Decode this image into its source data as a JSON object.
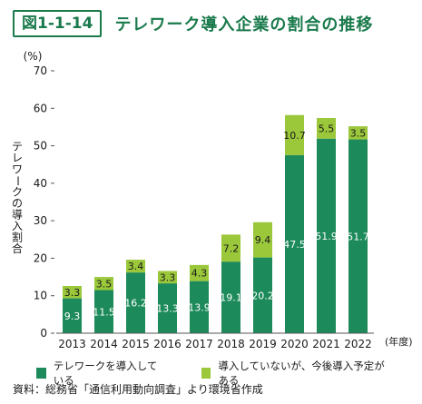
{
  "header": {
    "figure_label": "図1-1-14",
    "title": "テレワーク導入企業の割合の推移"
  },
  "colors": {
    "accent": "#1a7a4c",
    "series_dark": "#1c8a5a",
    "series_light": "#9bc73b"
  },
  "chart_data": {
    "type": "bar",
    "stacked": true,
    "unit_label": "(%)",
    "ylabel": "テレワークの導入割合",
    "x_unit_label": "(年度)",
    "categories": [
      "2013",
      "2014",
      "2015",
      "2016",
      "2017",
      "2018",
      "2019",
      "2020",
      "2021",
      "2022"
    ],
    "ylim": [
      0,
      70
    ],
    "yticks": [
      0,
      10,
      20,
      30,
      40,
      50,
      60,
      70
    ],
    "series": [
      {
        "name": "テレワークを導入している",
        "values": [
          9.3,
          11.5,
          16.2,
          13.3,
          13.9,
          19.1,
          20.2,
          47.5,
          51.9,
          51.7
        ]
      },
      {
        "name": "導入していないが、今後導入予定がある",
        "values": [
          3.3,
          3.5,
          3.4,
          3.3,
          4.3,
          7.2,
          9.4,
          10.7,
          5.5,
          3.5
        ]
      }
    ],
    "legend_position": "bottom"
  },
  "source": "資料：総務省「通信利用動向調査」より環境省作成"
}
